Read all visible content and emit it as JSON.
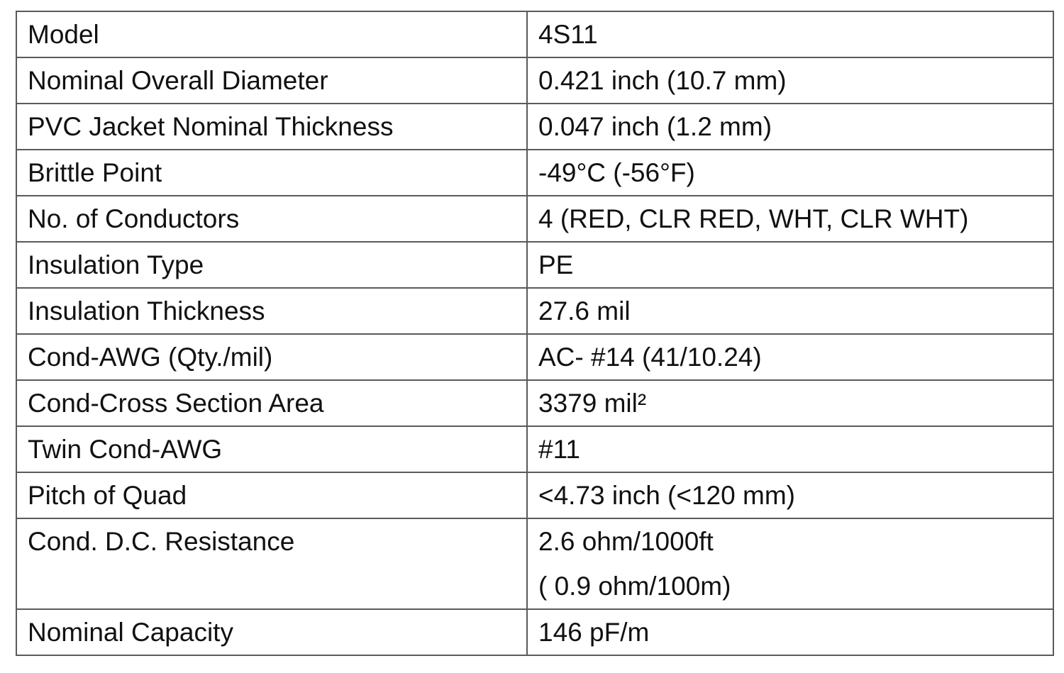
{
  "table": {
    "rows": [
      {
        "label": "Model",
        "value": [
          "4S11"
        ]
      },
      {
        "label": "Nominal Overall Diameter",
        "value": [
          "0.421 inch (10.7 mm)"
        ]
      },
      {
        "label": "PVC Jacket Nominal Thickness",
        "value": [
          "0.047 inch (1.2 mm)"
        ]
      },
      {
        "label": "Brittle Point",
        "value": [
          "-49°C (-56°F)"
        ]
      },
      {
        "label": "No. of Conductors",
        "value": [
          "4 (RED, CLR RED, WHT, CLR WHT)"
        ]
      },
      {
        "label": "Insulation Type",
        "value": [
          "PE"
        ]
      },
      {
        "label": "Insulation Thickness",
        "value": [
          "27.6 mil"
        ]
      },
      {
        "label": "Cond-AWG (Qty./mil)",
        "value": [
          "AC- #14 (41/10.24)"
        ]
      },
      {
        "label": "Cond-Cross Section Area",
        "value": [
          "3379 mil²"
        ]
      },
      {
        "label": "Twin Cond-AWG",
        "value": [
          "#11"
        ]
      },
      {
        "label": "Pitch of Quad",
        "value": [
          "<4.73 inch (<120 mm)"
        ]
      },
      {
        "label": "Cond. D.C. Resistance",
        "value": [
          "2.6 ohm/1000ft",
          "( 0.9 ohm/100m)"
        ]
      },
      {
        "label": "Nominal Capacity",
        "value": [
          "146 pF/m"
        ]
      }
    ]
  }
}
